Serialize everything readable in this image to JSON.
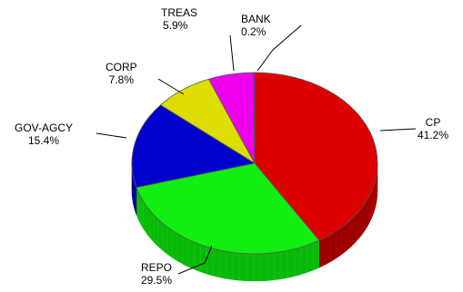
{
  "chart_data": {
    "type": "pie",
    "style": "3d",
    "title": "",
    "slices": [
      {
        "label": "CP",
        "percent_text": "41.2%",
        "value": 41.2,
        "color": "#dd0000",
        "side_color": "#990000"
      },
      {
        "label": "REPO",
        "percent_text": "29.5%",
        "value": 29.5,
        "color": "#11ee11",
        "side_color": "#0ab80a"
      },
      {
        "label": "GOV-AGCY",
        "percent_text": "15.4%",
        "value": 15.4,
        "color": "#0000cc",
        "side_color": "#000088"
      },
      {
        "label": "CORP",
        "percent_text": "7.8%",
        "value": 7.8,
        "color": "#dddd00",
        "side_color": "#a5a500"
      },
      {
        "label": "TREAS",
        "percent_text": "5.9%",
        "value": 5.9,
        "color": "#ee00ee",
        "side_color": "#a600a6"
      },
      {
        "label": "BANK",
        "percent_text": "0.2%",
        "value": 0.2,
        "color": "#8a2be2",
        "side_color": "#5a1a9a"
      }
    ],
    "legend": "none"
  }
}
